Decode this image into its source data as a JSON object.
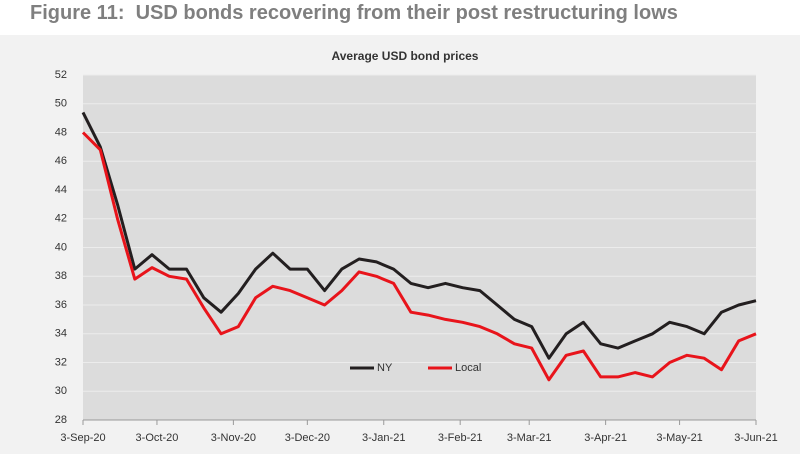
{
  "figure_title": "Figure 11:  USD bonds recovering from their post restructuring lows",
  "chart_data": {
    "type": "line",
    "title": "Average USD bond prices",
    "x": [
      "2020-09-03",
      "2020-09-10",
      "2020-09-17",
      "2020-09-24",
      "2020-10-01",
      "2020-10-08",
      "2020-10-15",
      "2020-10-22",
      "2020-10-29",
      "2020-11-05",
      "2020-11-12",
      "2020-11-19",
      "2020-11-26",
      "2020-12-03",
      "2020-12-10",
      "2020-12-17",
      "2020-12-24",
      "2020-12-31",
      "2021-01-07",
      "2021-01-14",
      "2021-01-21",
      "2021-01-28",
      "2021-02-04",
      "2021-02-11",
      "2021-02-18",
      "2021-02-25",
      "2021-03-04",
      "2021-03-11",
      "2021-03-18",
      "2021-03-25",
      "2021-04-01",
      "2021-04-08",
      "2021-04-15",
      "2021-04-22",
      "2021-04-29",
      "2021-05-06",
      "2021-05-13",
      "2021-05-20",
      "2021-05-27",
      "2021-06-03"
    ],
    "series": [
      {
        "name": "NY",
        "color": "#231f20",
        "values": [
          49.4,
          47.0,
          43.0,
          38.5,
          39.5,
          38.5,
          38.5,
          36.5,
          35.5,
          36.8,
          38.5,
          39.6,
          38.5,
          38.5,
          37.0,
          38.5,
          39.2,
          39.0,
          38.5,
          37.5,
          37.2,
          37.5,
          37.2,
          37.0,
          36.0,
          35.0,
          34.5,
          32.3,
          34.0,
          34.8,
          33.3,
          33.0,
          33.5,
          34.0,
          34.8,
          34.5,
          34.0,
          35.5,
          36.0,
          36.3
        ]
      },
      {
        "name": "Local",
        "color": "#e8141b",
        "values": [
          48.0,
          46.8,
          42.0,
          37.8,
          38.6,
          38.0,
          37.8,
          35.8,
          34.0,
          34.5,
          36.5,
          37.3,
          37.0,
          36.5,
          36.0,
          37.0,
          38.3,
          38.0,
          37.5,
          35.5,
          35.3,
          35.0,
          34.8,
          34.5,
          34.0,
          33.3,
          33.0,
          30.8,
          32.5,
          32.8,
          31.0,
          31.0,
          31.3,
          31.0,
          32.0,
          32.5,
          32.3,
          31.5,
          33.5,
          34.0
        ]
      }
    ],
    "xlim": [
      "2020-09-03",
      "2021-06-03"
    ],
    "xticks": [
      {
        "value": "2020-09-03",
        "label": "3-Sep-20"
      },
      {
        "value": "2020-10-03",
        "label": "3-Oct-20"
      },
      {
        "value": "2020-11-03",
        "label": "3-Nov-20"
      },
      {
        "value": "2020-12-03",
        "label": "3-Dec-20"
      },
      {
        "value": "2021-01-03",
        "label": "3-Jan-21"
      },
      {
        "value": "2021-02-03",
        "label": "3-Feb-21"
      },
      {
        "value": "2021-03-03",
        "label": "3-Mar-21"
      },
      {
        "value": "2021-04-03",
        "label": "3-Apr-21"
      },
      {
        "value": "2021-05-03",
        "label": "3-May-21"
      },
      {
        "value": "2021-06-03",
        "label": "3-Jun-21"
      }
    ],
    "ylim": [
      28,
      52
    ],
    "yticks": [
      28,
      30,
      32,
      34,
      36,
      38,
      40,
      42,
      44,
      46,
      48,
      50,
      52
    ],
    "grid": true
  }
}
